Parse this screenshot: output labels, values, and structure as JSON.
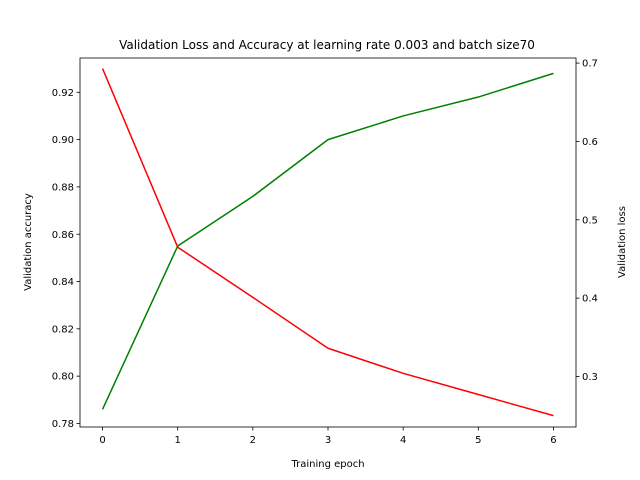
{
  "chart_data": {
    "type": "line",
    "title": "Validation Loss and Accuracy at learning rate 0.003 and batch size70",
    "xlabel": "Training epoch",
    "ylabel_left": "Validation accuracy",
    "ylabel_right": "Validation loss",
    "x": [
      0,
      1,
      2,
      3,
      4,
      5,
      6
    ],
    "xlim": [
      -0.3,
      6.3
    ],
    "ylim_left": [
      0.7785,
      0.9345
    ],
    "ylim_right": [
      0.2355,
      0.7065
    ],
    "x_ticks": [
      0,
      1,
      2,
      3,
      4,
      5,
      6
    ],
    "left_ticks": [
      0.78,
      0.8,
      0.82,
      0.84,
      0.86,
      0.88,
      0.9,
      0.92
    ],
    "left_tick_labels": [
      "0.78",
      "0.80",
      "0.82",
      "0.84",
      "0.86",
      "0.88",
      "0.90",
      "0.92"
    ],
    "right_ticks": [
      0.3,
      0.4,
      0.5,
      0.6,
      0.7
    ],
    "right_tick_labels": [
      "0.3",
      "0.4",
      "0.5",
      "0.6",
      "0.7"
    ],
    "grid": false,
    "legend": "none",
    "series": [
      {
        "axis": "left",
        "color": "#008000",
        "values": [
          0.786,
          0.855,
          0.876,
          0.9,
          0.91,
          0.918,
          0.928
        ]
      },
      {
        "axis": "right",
        "color": "#ff0000",
        "values": [
          0.693,
          0.465,
          0.401,
          0.336,
          0.304,
          0.277,
          0.25
        ]
      }
    ]
  }
}
